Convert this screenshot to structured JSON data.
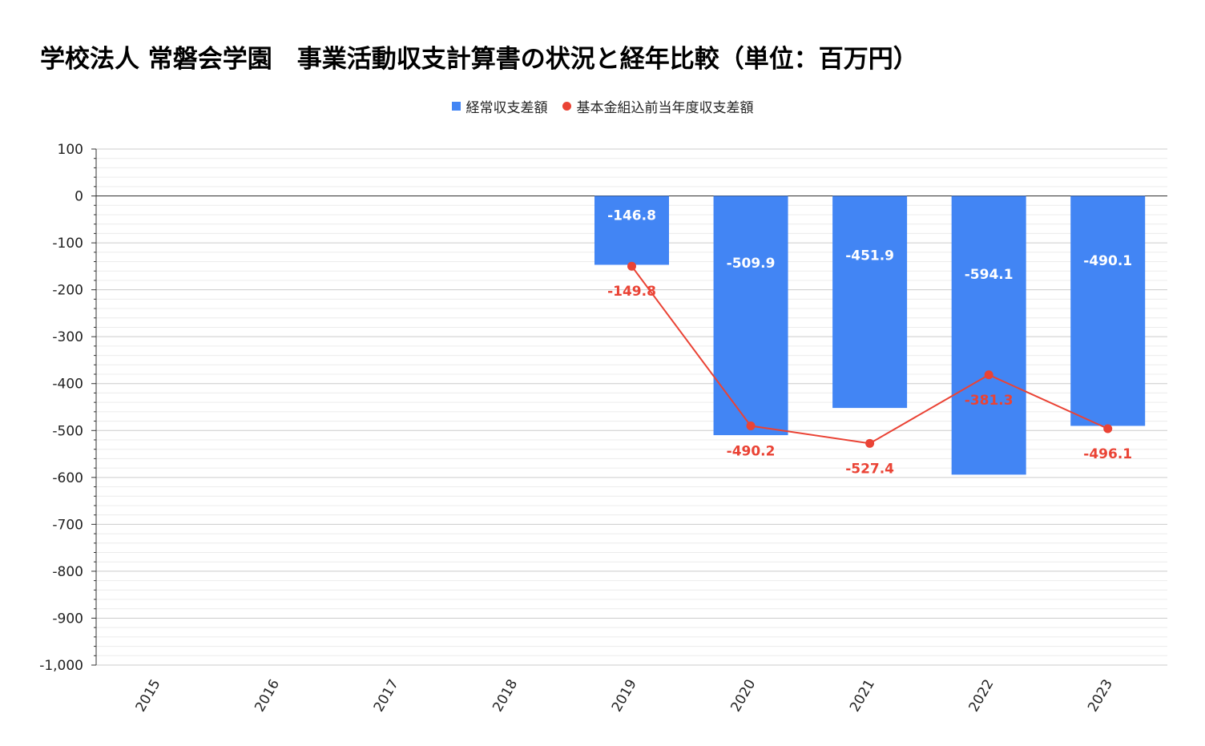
{
  "chart_data": {
    "type": "bar",
    "title": "学校法人 常磐会学園　事業活動収支計算書の状況と経年比較（単位：百万円）",
    "categories": [
      "2015",
      "2016",
      "2017",
      "2018",
      "2019",
      "2020",
      "2021",
      "2022",
      "2023"
    ],
    "series": [
      {
        "name": "経常収支差額",
        "type": "bar",
        "color": "#4285f4",
        "values": [
          null,
          null,
          null,
          null,
          -146.8,
          -509.9,
          -451.9,
          -594.1,
          -490.1
        ]
      },
      {
        "name": "基本金組込前当年度収支差額",
        "type": "line",
        "color": "#ea4335",
        "values": [
          null,
          null,
          null,
          null,
          -149.8,
          -490.2,
          -527.4,
          -381.3,
          -496.1
        ]
      }
    ],
    "ylim": [
      -1000,
      100
    ],
    "yticks": [
      100,
      0,
      -100,
      -200,
      -300,
      -400,
      -500,
      -600,
      -700,
      -800,
      -900,
      -1000
    ],
    "ytick_labels": [
      "100",
      "0",
      "-100",
      "-200",
      "-300",
      "-400",
      "-500",
      "-600",
      "-700",
      "-800",
      "-900",
      "-1,000"
    ],
    "xlabel": "",
    "ylabel": "",
    "grid": true,
    "legend_position": "top-center",
    "bar_label_color": "#ffffff",
    "axis_color": "#333333",
    "grid_color": "#d9d9d9"
  }
}
